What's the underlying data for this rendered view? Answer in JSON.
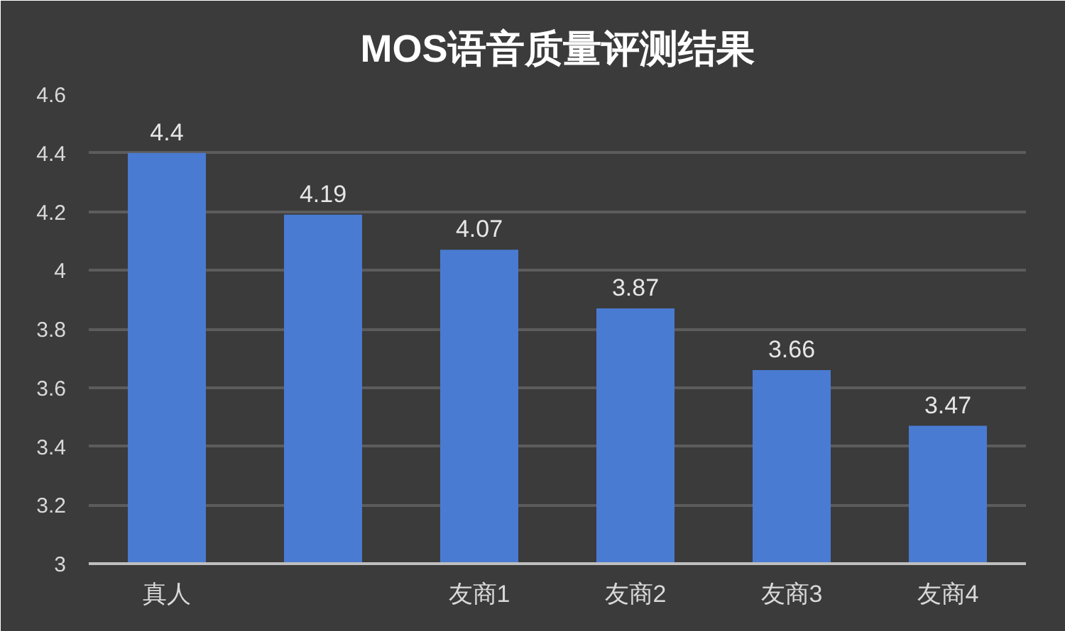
{
  "chart_data": {
    "type": "bar",
    "title": "MOS语音质量评测结果",
    "categories": [
      "真人",
      null,
      "友商1",
      "友商2",
      "友商3",
      "友商4"
    ],
    "values": [
      4.4,
      4.19,
      4.07,
      3.87,
      3.66,
      3.47
    ],
    "color": "#4a7bd2",
    "ylim": [
      3,
      4.6
    ],
    "yticks": [
      3,
      3.2,
      3.4,
      3.6,
      3.8,
      4,
      4.2,
      4.4,
      4.6
    ],
    "grid": "y",
    "data_labels": true
  }
}
